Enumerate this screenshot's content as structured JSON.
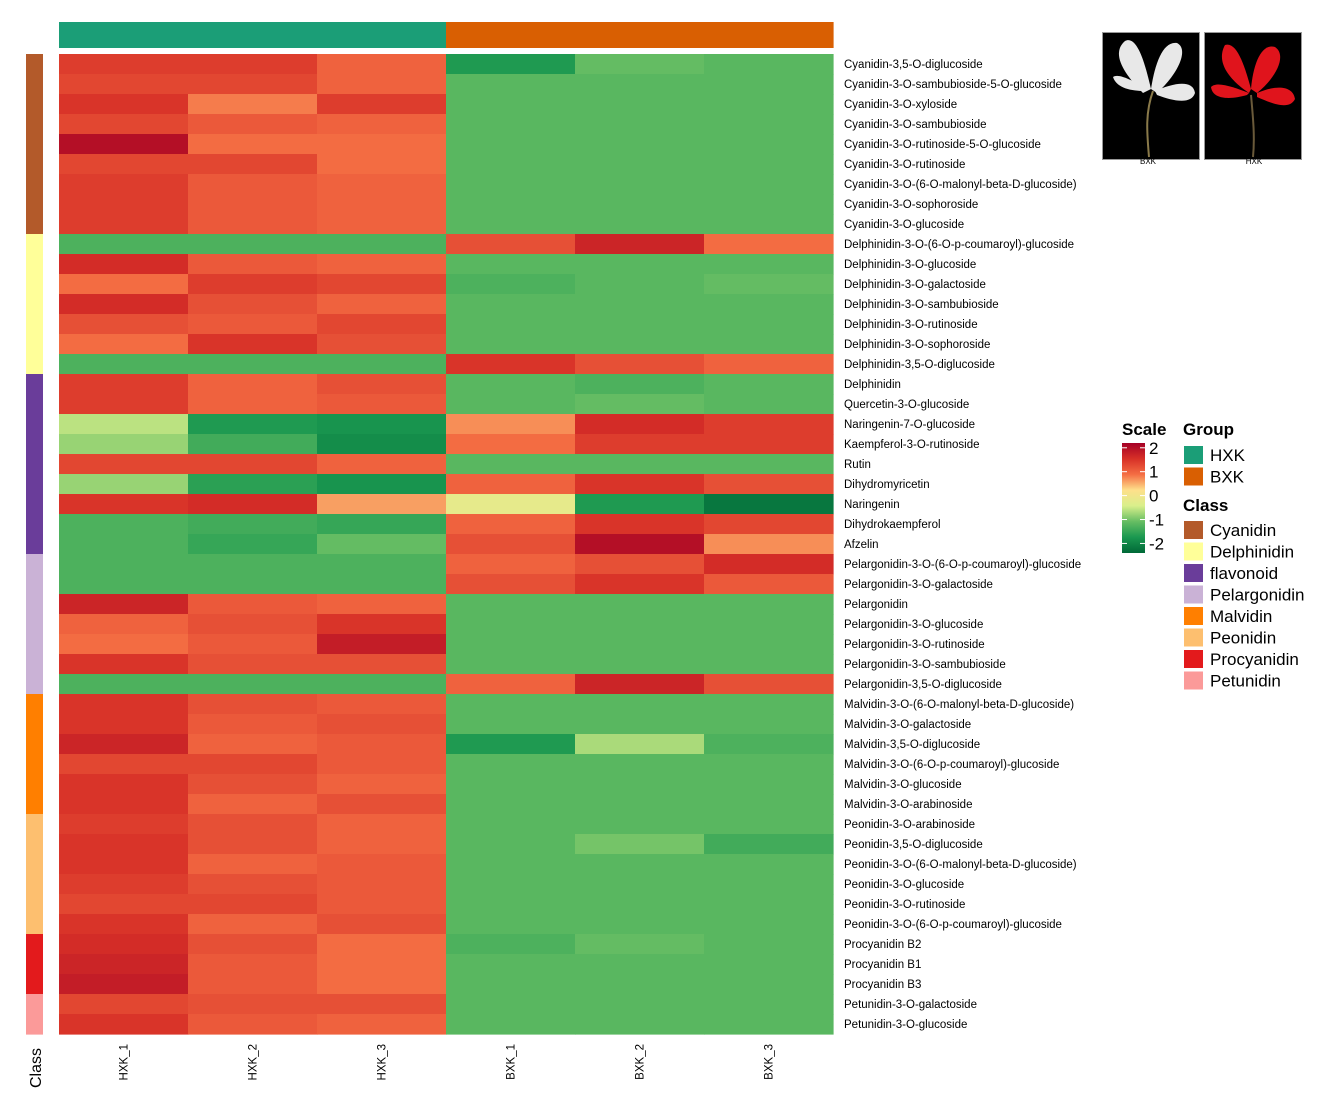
{
  "chart_data": {
    "type": "heatmap",
    "columns": [
      "HXK_1",
      "HXK_2",
      "HXK_3",
      "BXK_1",
      "BXK_2",
      "BXK_3"
    ],
    "column_groups": [
      "HXK",
      "HXK",
      "HXK",
      "BXK",
      "BXK",
      "BXK"
    ],
    "rows": [
      {
        "name": "Cyanidin-3,5-O-diglucoside",
        "class": "Cyanidin",
        "values": [
          1.4,
          1.4,
          1.0,
          -1.7,
          -1.1,
          -1.2
        ]
      },
      {
        "name": "Cyanidin-3-O-sambubioside-5-O-glucoside",
        "class": "Cyanidin",
        "values": [
          1.3,
          1.3,
          1.0,
          -1.2,
          -1.2,
          -1.2
        ]
      },
      {
        "name": "Cyanidin-3-O-xyloside",
        "class": "Cyanidin",
        "values": [
          1.5,
          0.8,
          1.4,
          -1.2,
          -1.2,
          -1.2
        ]
      },
      {
        "name": "Cyanidin-3-O-sambubioside",
        "class": "Cyanidin",
        "values": [
          1.3,
          1.1,
          1.0,
          -1.2,
          -1.2,
          -1.2
        ]
      },
      {
        "name": "Cyanidin-3-O-rutinoside-5-O-glucoside",
        "class": "Cyanidin",
        "values": [
          2.0,
          0.9,
          0.9,
          -1.2,
          -1.2,
          -1.2
        ]
      },
      {
        "name": "Cyanidin-3-O-rutinoside",
        "class": "Cyanidin",
        "values": [
          1.3,
          1.3,
          0.9,
          -1.2,
          -1.2,
          -1.2
        ]
      },
      {
        "name": "Cyanidin-3-O-(6-O-malonyl-beta-D-glucoside)",
        "class": "Cyanidin",
        "values": [
          1.4,
          1.1,
          1.0,
          -1.2,
          -1.2,
          -1.2
        ]
      },
      {
        "name": "Cyanidin-3-O-sophoroside",
        "class": "Cyanidin",
        "values": [
          1.4,
          1.1,
          1.0,
          -1.2,
          -1.2,
          -1.2
        ]
      },
      {
        "name": "Cyanidin-3-O-glucoside",
        "class": "Cyanidin",
        "values": [
          1.4,
          1.1,
          1.0,
          -1.2,
          -1.2,
          -1.2
        ]
      },
      {
        "name": "Delphinidin-3-O-(6-O-p-coumaroyl)-glucoside",
        "class": "Delphinidin",
        "values": [
          -1.3,
          -1.3,
          -1.3,
          1.2,
          1.7,
          0.9
        ]
      },
      {
        "name": "Delphinidin-3-O-glucoside",
        "class": "Delphinidin",
        "values": [
          1.6,
          1.1,
          1.0,
          -1.2,
          -1.2,
          -1.2
        ]
      },
      {
        "name": "Delphinidin-3-O-galactoside",
        "class": "Delphinidin",
        "values": [
          0.9,
          1.4,
          1.3,
          -1.3,
          -1.2,
          -1.1
        ]
      },
      {
        "name": "Delphinidin-3-O-sambubioside",
        "class": "Delphinidin",
        "values": [
          1.6,
          1.2,
          1.0,
          -1.2,
          -1.2,
          -1.2
        ]
      },
      {
        "name": "Delphinidin-3-O-rutinoside",
        "class": "Delphinidin",
        "values": [
          1.2,
          1.1,
          1.3,
          -1.2,
          -1.2,
          -1.2
        ]
      },
      {
        "name": "Delphinidin-3-O-sophoroside",
        "class": "Delphinidin",
        "values": [
          0.9,
          1.5,
          1.2,
          -1.2,
          -1.2,
          -1.2
        ]
      },
      {
        "name": "Delphinidin-3,5-O-diglucoside",
        "class": "Delphinidin",
        "values": [
          -1.3,
          -1.3,
          -1.3,
          1.5,
          1.2,
          1.0
        ]
      },
      {
        "name": "Delphinidin",
        "class": "flavonoid",
        "values": [
          1.4,
          1.0,
          1.2,
          -1.2,
          -1.3,
          -1.2
        ]
      },
      {
        "name": "Quercetin-3-O-glucoside",
        "class": "flavonoid",
        "values": [
          1.4,
          1.0,
          1.1,
          -1.2,
          -1.1,
          -1.2
        ]
      },
      {
        "name": "Naringenin-7-O-glucoside",
        "class": "flavonoid",
        "values": [
          -0.6,
          -1.7,
          -1.8,
          0.7,
          1.6,
          1.4
        ]
      },
      {
        "name": "Kaempferol-3-O-rutinoside",
        "class": "flavonoid",
        "values": [
          -0.8,
          -1.4,
          -1.9,
          0.9,
          1.4,
          1.4
        ]
      },
      {
        "name": "Rutin",
        "class": "flavonoid",
        "values": [
          1.3,
          1.3,
          1.0,
          -1.2,
          -1.2,
          -1.2
        ]
      },
      {
        "name": "Dihydromyricetin",
        "class": "flavonoid",
        "values": [
          -0.8,
          -1.6,
          -1.8,
          1.0,
          1.5,
          1.2
        ]
      },
      {
        "name": "Naringenin",
        "class": "flavonoid",
        "values": [
          1.5,
          1.6,
          0.6,
          -0.2,
          -1.7,
          -2.2
        ]
      },
      {
        "name": "Dihydrokaempferol",
        "class": "flavonoid",
        "values": [
          -1.3,
          -1.4,
          -1.5,
          1.0,
          1.5,
          1.3
        ]
      },
      {
        "name": "Afzelin",
        "class": "flavonoid",
        "values": [
          -1.3,
          -1.5,
          -1.1,
          1.2,
          2.0,
          0.7
        ]
      },
      {
        "name": "Pelargonidin-3-O-(6-O-p-coumaroyl)-glucoside",
        "class": "Pelargonidin",
        "values": [
          -1.3,
          -1.3,
          -1.3,
          1.0,
          1.2,
          1.6
        ]
      },
      {
        "name": "Pelargonidin-3-O-galactoside",
        "class": "Pelargonidin",
        "values": [
          -1.3,
          -1.3,
          -1.3,
          1.2,
          1.5,
          1.1
        ]
      },
      {
        "name": "Pelargonidin",
        "class": "Pelargonidin",
        "values": [
          1.7,
          1.1,
          1.0,
          -1.2,
          -1.2,
          -1.2
        ]
      },
      {
        "name": "Pelargonidin-3-O-glucoside",
        "class": "Pelargonidin",
        "values": [
          1.0,
          1.2,
          1.5,
          -1.2,
          -1.2,
          -1.2
        ]
      },
      {
        "name": "Pelargonidin-3-O-rutinoside",
        "class": "Pelargonidin",
        "values": [
          0.9,
          1.1,
          1.8,
          -1.2,
          -1.2,
          -1.2
        ]
      },
      {
        "name": "Pelargonidin-3-O-sambubioside",
        "class": "Pelargonidin",
        "values": [
          1.5,
          1.2,
          1.2,
          -1.2,
          -1.2,
          -1.2
        ]
      },
      {
        "name": "Pelargonidin-3,5-O-diglucoside",
        "class": "Pelargonidin",
        "values": [
          -1.3,
          -1.3,
          -1.3,
          1.0,
          1.7,
          1.2
        ]
      },
      {
        "name": "Malvidin-3-O-(6-O-malonyl-beta-D-glucoside)",
        "class": "Malvidin",
        "values": [
          1.5,
          1.2,
          1.1,
          -1.2,
          -1.2,
          -1.2
        ]
      },
      {
        "name": "Malvidin-3-O-galactoside",
        "class": "Malvidin",
        "values": [
          1.5,
          1.1,
          1.2,
          -1.2,
          -1.2,
          -1.2
        ]
      },
      {
        "name": "Malvidin-3,5-O-diglucoside",
        "class": "Malvidin",
        "values": [
          1.7,
          1.0,
          1.1,
          -1.7,
          -0.7,
          -1.3
        ]
      },
      {
        "name": "Malvidin-3-O-(6-O-p-coumaroyl)-glucoside",
        "class": "Malvidin",
        "values": [
          1.3,
          1.3,
          1.1,
          -1.2,
          -1.2,
          -1.2
        ]
      },
      {
        "name": "Malvidin-3-O-glucoside",
        "class": "Malvidin",
        "values": [
          1.5,
          1.2,
          1.0,
          -1.2,
          -1.2,
          -1.2
        ]
      },
      {
        "name": "Malvidin-3-O-arabinoside",
        "class": "Malvidin",
        "values": [
          1.5,
          1.0,
          1.2,
          -1.2,
          -1.2,
          -1.2
        ]
      },
      {
        "name": "Peonidin-3-O-arabinoside",
        "class": "Peonidin",
        "values": [
          1.4,
          1.2,
          1.0,
          -1.2,
          -1.2,
          -1.2
        ]
      },
      {
        "name": "Peonidin-3,5-O-diglucoside",
        "class": "Peonidin",
        "values": [
          1.5,
          1.2,
          1.0,
          -1.2,
          -1.0,
          -1.4
        ]
      },
      {
        "name": "Peonidin-3-O-(6-O-malonyl-beta-D-glucoside)",
        "class": "Peonidin",
        "values": [
          1.5,
          1.0,
          1.1,
          -1.2,
          -1.2,
          -1.2
        ]
      },
      {
        "name": "Peonidin-3-O-glucoside",
        "class": "Peonidin",
        "values": [
          1.4,
          1.2,
          1.1,
          -1.2,
          -1.2,
          -1.2
        ]
      },
      {
        "name": "Peonidin-3-O-rutinoside",
        "class": "Peonidin",
        "values": [
          1.3,
          1.3,
          1.1,
          -1.2,
          -1.2,
          -1.2
        ]
      },
      {
        "name": "Peonidin-3-O-(6-O-p-coumaroyl)-glucoside",
        "class": "Peonidin",
        "values": [
          1.5,
          1.0,
          1.2,
          -1.2,
          -1.2,
          -1.2
        ]
      },
      {
        "name": "Procyanidin B2",
        "class": "Procyanidin",
        "values": [
          1.6,
          1.2,
          0.9,
          -1.3,
          -1.1,
          -1.2
        ]
      },
      {
        "name": "Procyanidin B1",
        "class": "Procyanidin",
        "values": [
          1.7,
          1.1,
          0.9,
          -1.2,
          -1.2,
          -1.2
        ]
      },
      {
        "name": "Procyanidin B3",
        "class": "Procyanidin",
        "values": [
          1.8,
          1.1,
          0.9,
          -1.2,
          -1.2,
          -1.2
        ]
      },
      {
        "name": "Petunidin-3-O-galactoside",
        "class": "Petunidin",
        "values": [
          1.3,
          1.2,
          1.2,
          -1.2,
          -1.2,
          -1.2
        ]
      },
      {
        "name": "Petunidin-3-O-glucoside",
        "class": "Petunidin",
        "values": [
          1.5,
          1.1,
          1.0,
          -1.2,
          -1.2,
          -1.2
        ]
      }
    ],
    "scale": {
      "title": "Scale",
      "min": -2.4,
      "max": 2.2,
      "ticks": [
        2,
        1,
        0,
        -1,
        -2
      ],
      "colors": [
        "#006837",
        "#1a9850",
        "#66bd63",
        "#d9ef8b",
        "#fee08b",
        "#f46d43",
        "#d73027",
        "#a50026"
      ]
    },
    "group_legend": {
      "title": "Group",
      "items": [
        {
          "label": "HXK",
          "color": "#1b9e77"
        },
        {
          "label": "BXK",
          "color": "#d95f02"
        }
      ]
    },
    "class_legend": {
      "title": "Class",
      "items": [
        {
          "label": "Cyanidin",
          "color": "#b35a2a"
        },
        {
          "label": "Delphinidin",
          "color": "#ffff99"
        },
        {
          "label": "flavonoid",
          "color": "#6a3d9a"
        },
        {
          "label": "Pelargonidin",
          "color": "#cab2d6"
        },
        {
          "label": "Malvidin",
          "color": "#ff7f00"
        },
        {
          "label": "Peonidin",
          "color": "#fdbf6f"
        },
        {
          "label": "Procyanidin",
          "color": "#e31a1c"
        },
        {
          "label": "Petunidin",
          "color": "#fb9a99"
        }
      ]
    },
    "class_axis_label": "Class"
  },
  "photos": [
    {
      "label": "BXK",
      "petal_color": "#e8e8e8"
    },
    {
      "label": "HXK",
      "petal_color": "#e0141c"
    }
  ]
}
